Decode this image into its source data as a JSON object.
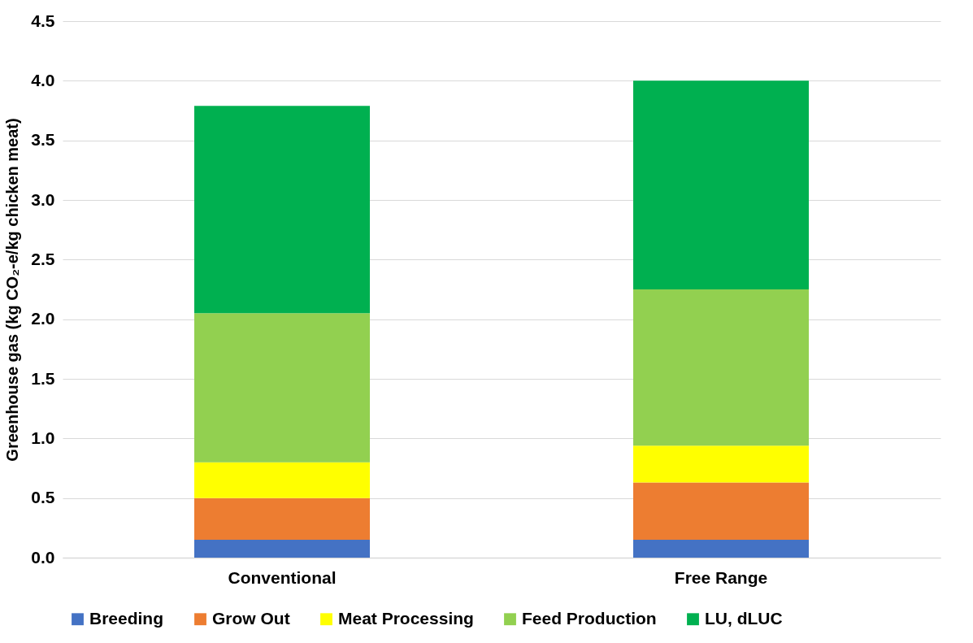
{
  "chart_data": {
    "type": "bar",
    "stacked": true,
    "ylabel": "Greenhouse gas (kg CO₂-e/kg chicken meat)",
    "categories": [
      "Conventional",
      "Free Range"
    ],
    "series": [
      {
        "name": "Breeding",
        "color": "#4472c4",
        "values": [
          0.15,
          0.15
        ]
      },
      {
        "name": "Grow Out",
        "color": "#ed7d31",
        "values": [
          0.35,
          0.48
        ]
      },
      {
        "name": "Meat Processing",
        "color": "#ffff00",
        "values": [
          0.3,
          0.31
        ]
      },
      {
        "name": "Feed Production",
        "color": "#92d050",
        "values": [
          1.25,
          1.31
        ]
      },
      {
        "name": "LU, dLUC",
        "color": "#00b050",
        "values": [
          1.74,
          1.75
        ]
      }
    ],
    "ylim": [
      0,
      4.5
    ],
    "yticks": [
      {
        "value": 0,
        "label": "0.0"
      },
      {
        "value": 0.5,
        "label": "0.5"
      },
      {
        "value": 1,
        "label": "1.0"
      },
      {
        "value": 1.5,
        "label": "1.5"
      },
      {
        "value": 2,
        "label": "2.0"
      },
      {
        "value": 2.5,
        "label": "2.5"
      },
      {
        "value": 3,
        "label": "3.0"
      },
      {
        "value": 3.5,
        "label": "3.5"
      },
      {
        "value": 4,
        "label": "4.0"
      },
      {
        "value": 4.5,
        "label": "4.5"
      }
    ],
    "grid": "y",
    "legend": "bottom"
  }
}
